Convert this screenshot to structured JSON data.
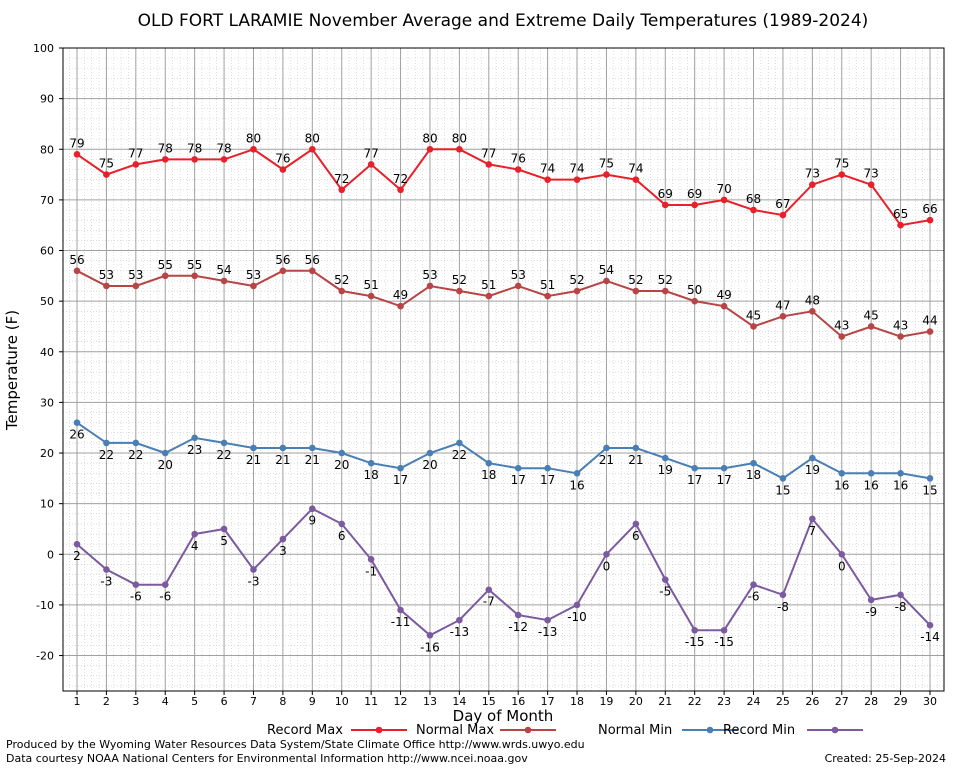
{
  "chart_data": {
    "type": "line",
    "title": "OLD FORT LARAMIE November Average and Extreme Daily Temperatures (1989-2024)",
    "xlabel": "Day of Month",
    "ylabel": "Temperature (F)",
    "ylim": [
      -27,
      100
    ],
    "yticks": [
      100,
      90,
      80,
      70,
      60,
      50,
      40,
      30,
      20,
      10,
      0,
      -10,
      -20
    ],
    "x": [
      1,
      2,
      3,
      4,
      5,
      6,
      7,
      8,
      9,
      10,
      11,
      12,
      13,
      14,
      15,
      16,
      17,
      18,
      19,
      20,
      21,
      22,
      23,
      24,
      25,
      26,
      27,
      28,
      29,
      30
    ],
    "grid": true,
    "legend_position": "bottom",
    "series": [
      {
        "name": "Record Max",
        "color": "#e8202a",
        "label_side": "above",
        "values": [
          79,
          75,
          77,
          78,
          78,
          78,
          80,
          76,
          80,
          72,
          77,
          72,
          80,
          80,
          77,
          76,
          74,
          74,
          75,
          74,
          69,
          69,
          70,
          68,
          67,
          73,
          75,
          73,
          65,
          66
        ]
      },
      {
        "name": "Normal Max",
        "color": "#b84545",
        "label_side": "above",
        "values": [
          56,
          53,
          53,
          55,
          55,
          54,
          53,
          56,
          56,
          52,
          51,
          49,
          53,
          52,
          51,
          53,
          51,
          52,
          54,
          52,
          52,
          50,
          49,
          45,
          47,
          48,
          43,
          45,
          43,
          44
        ]
      },
      {
        "name": "Normal Min",
        "color": "#4a7fb5",
        "label_side": "below",
        "values": [
          26,
          22,
          22,
          20,
          23,
          22,
          21,
          21,
          21,
          20,
          18,
          17,
          20,
          22,
          18,
          17,
          17,
          16,
          21,
          21,
          19,
          17,
          17,
          18,
          15,
          19,
          16,
          16,
          16,
          15
        ]
      },
      {
        "name": "Record Min",
        "color": "#7b5aa0",
        "label_side": "below",
        "values": [
          2,
          -3,
          -6,
          -6,
          4,
          5,
          -3,
          3,
          9,
          6,
          -1,
          -11,
          -16,
          -13,
          -7,
          -12,
          -13,
          -10,
          0,
          6,
          -5,
          -15,
          -15,
          -6,
          -8,
          7,
          0,
          -9,
          -8,
          -14
        ]
      }
    ]
  },
  "footer": {
    "line1": "Produced by the Wyoming Water Resources Data System/State Climate Office http://www.wrds.uwyo.edu",
    "line2": "Data courtesy NOAA National Centers for Environmental Information http://www.ncei.noaa.gov",
    "created": "Created:  25-Sep-2024"
  }
}
